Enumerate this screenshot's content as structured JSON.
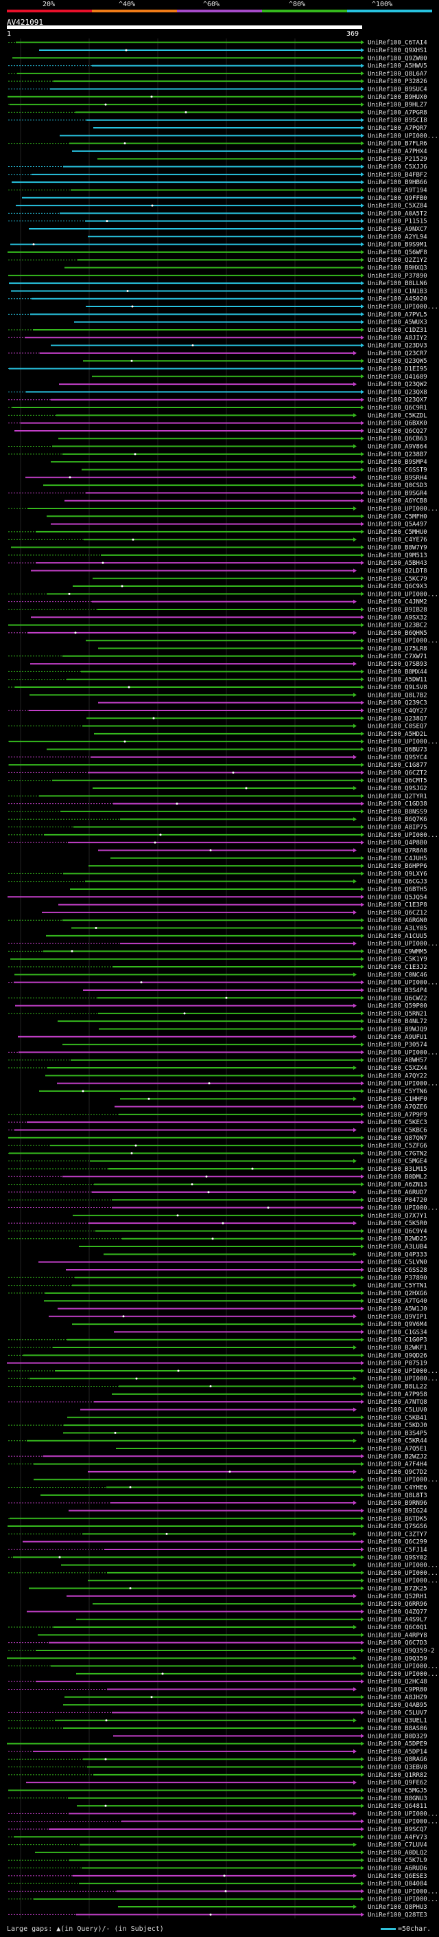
{
  "scale": {
    "labels": [
      "20%",
      "^40%",
      "^60%",
      "^80%",
      "^100%"
    ],
    "colors": [
      "#e8102a",
      "#f07c18",
      "#a64bc9",
      "#35b81d",
      "#28c3e0"
    ]
  },
  "query": {
    "id": "AV421091",
    "start": "1",
    "end": "369"
  },
  "legend": {
    "gaps": "Large gaps: ▲(in Query)/- (in Subject)",
    "scale": "=50char."
  },
  "hits": [
    "UniRef100_C6TAI4",
    "UniRef100_Q9XHS1",
    "UniRef100_Q9ZW00",
    "UniRef100_A5HWV5",
    "UniRef100_Q8L6A7",
    "UniRef100_P32826",
    "UniRef100_B9SUC4",
    "UniRef100_B9HUX0",
    "UniRef100_B9HLZ7",
    "UniRef100_A7PGR8",
    "UniRef100_B9SCI8",
    "UniRef100_A7PQR7",
    "UniRef100_UPI000...",
    "UniRef100_B7FLR6",
    "UniRef100_A7PHX4",
    "UniRef100_P21529",
    "UniRef100_C5XJJ6",
    "UniRef100_B4FBF2",
    "UniRef100_B9HB66",
    "UniRef100_A9T194",
    "UniRef100_Q9FFB0",
    "UniRef100_C5XZ84",
    "UniRef100_A0A5T2",
    "UniRef100_P11515",
    "UniRef100_A9NXC7",
    "UniRef100_A2YL94",
    "UniRef100_B9S9M1",
    "UniRef100_Q56WF8",
    "UniRef100_Q2Z1Y2",
    "UniRef100_B9HXQ3",
    "UniRef100_P37890",
    "UniRef100_B8LLN6",
    "UniRef100_C1N1B3",
    "UniRef100_A4S020",
    "UniRef100_UPI000...",
    "UniRef100_A7PVL5",
    "UniRef100_A5WUX3",
    "UniRef100_C1DZ31",
    "UniRef100_A8JIY2",
    "UniRef100_Q23DV3",
    "UniRef100_Q23CR7",
    "UniRef100_Q23QW5",
    "UniRef100_D1EI95",
    "UniRef100_Q41689",
    "UniRef100_Q23QW2",
    "UniRef100_Q23QX8",
    "UniRef100_Q23QX7",
    "UniRef100_Q6C9R1",
    "UniRef100_C5KZDL",
    "UniRef100_Q6BXK0",
    "UniRef100_Q6CQ27",
    "UniRef100_Q6CB63",
    "UniRef100_A9V864",
    "UniRef100_Q238B7",
    "UniRef100_B9SMP4",
    "UniRef100_C6SST9",
    "UniRef100_B9SRH4",
    "UniRef100_Q0CSD3",
    "UniRef100_B9SGR4",
    "UniRef100_A6YCB8",
    "UniRef100_UPI000...",
    "UniRef100_C5MFH0",
    "UniRef100_Q5A497",
    "UniRef100_C5MHU0",
    "UniRef100_C4YE76",
    "UniRef100_B8W7Y9",
    "UniRef100_Q9M513",
    "UniRef100_A5BH43",
    "UniRef100_Q2LDT8",
    "UniRef100_C5KC79",
    "UniRef100_Q6C9X3",
    "UniRef100_UPI000...",
    "UniRef100_C4JNM2",
    "UniRef100_B9IB28",
    "UniRef100_A9SX32",
    "UniRef100_Q23BC2",
    "UniRef100_B6QHN5",
    "UniRef100_UPI000...",
    "UniRef100_Q75LR8",
    "UniRef100_C7XW71",
    "UniRef100_Q7SB93",
    "UniRef100_B8MX44",
    "UniRef100_A5DW11",
    "UniRef100_Q9LSV8",
    "UniRef100_Q8L7B2",
    "UniRef100_Q239C3",
    "UniRef100_C4QY27",
    "UniRef100_Q238Q7",
    "UniRef100_C0SEQ7",
    "UniRef100_A5HD2L",
    "UniRef100_UPI000...",
    "UniRef100_Q6BU73",
    "UniRef100_Q9SYC4",
    "UniRef100_C1G877",
    "UniRef100_Q6CZT2",
    "UniRef100_Q6CMT5",
    "UniRef100_Q9SJG2",
    "UniRef100_Q2TYR1",
    "UniRef100_C1GD38",
    "UniRef100_B8NSS9",
    "UniRef100_B6Q7K6",
    "UniRef100_A8IP75",
    "UniRef100_UPI000...",
    "UniRef100_Q4P8B0",
    "UniRef100_Q7R8A8",
    "UniRef100_C4JUH5",
    "UniRef100_B6HPP6",
    "UniRef100_Q9LXY6",
    "UniRef100_Q6CGJ3",
    "UniRef100_Q6BTH5",
    "UniRef100_Q5JQ54",
    "UniRef100_C1E3P8",
    "UniRef100_Q6CZ12",
    "UniRef100_A6RGN0",
    "UniRef100_A3LY05",
    "UniRef100_A1CUU5",
    "UniRef100_UPI000...",
    "UniRef100_C9WMM5",
    "UniRef100_C5K1Y9",
    "UniRef100_C1E3J2",
    "UniRef100_C0NC46",
    "UniRef100_UPI000...",
    "UniRef100_B3S4P4",
    "UniRef100_Q6CWZ2",
    "UniRef100_Q59P00",
    "UniRef100_Q5RN21",
    "UniRef100_B4NL72",
    "UniRef100_B9WJQ9",
    "UniRef100_A9UFU1",
    "UniRef100_P30574",
    "UniRef100_UPI000...",
    "UniRef100_A8WH57",
    "UniRef100_C5XZX4",
    "UniRef100_A7QY22",
    "UniRef100_UPI000...",
    "UniRef100_C5YTN6",
    "UniRef100_C1HHF0",
    "UniRef100_A7QZE6",
    "UniRef100_A7P9F9",
    "UniRef100_C5KEC3",
    "UniRef100_C5KBC6",
    "UniRef100_Q87QN7",
    "UniRef100_C5ZFG6",
    "UniRef100_C7GTN2",
    "UniRef100_C5MGE4",
    "UniRef100_B3LM15",
    "UniRef100_B0DML2",
    "UniRef100_A6ZN13",
    "UniRef100_A6RUD7",
    "UniRef100_P04720",
    "UniRef100_UPI000...",
    "UniRef100_Q7X7Y1",
    "UniRef100_C5K5R0",
    "UniRef100_Q6C9Y4",
    "UniRef100_B2WD25",
    "UniRef100_A3LUB4",
    "UniRef100_Q4P333",
    "UniRef100_C5LVN0",
    "UniRef100_C6SS28",
    "UniRef100_P37890",
    "UniRef100_C5YTN1",
    "UniRef100_Q2HXG6",
    "UniRef100_A7TG40",
    "UniRef100_A5W1J0",
    "UniRef100_Q9VIP1",
    "UniRef100_Q9V6M4",
    "UniRef100_C1GS34",
    "UniRef100_C1G0P3",
    "UniRef100_B2WKF1",
    "UniRef100_Q9QD26",
    "UniRef100_P07519",
    "UniRef100_UPI000...",
    "UniRef100_UPI000...",
    "UniRef100_B8LL22",
    "UniRef100_A7P958",
    "UniRef100_A7NTQ8",
    "UniRef100_C5LUV0",
    "UniRef100_C5KB41",
    "UniRef100_C5KDJ0",
    "UniRef100_B3S4P5",
    "UniRef100_C5KR44",
    "UniRef100_A7Q5E1",
    "UniRef100_B2WZJ2",
    "UniRef100_A7F4H4",
    "UniRef100_Q9C7D2",
    "UniRef100_UPI000...",
    "UniRef100_C4YHE6",
    "UniRef100_Q8L8T3",
    "UniRef100_B9RN96",
    "UniRef100_B9IG24",
    "UniRef100_B6TDK5",
    "UniRef100_Q7SGS6",
    "UniRef100_C3ZTY7",
    "UniRef100_Q6C299",
    "UniRef100_C5FJ14",
    "UniRef100_Q9SY02",
    "UniRef100_UPI000...",
    "UniRef100_UPI000...",
    "UniRef100_UPI000...",
    "UniRef100_B7ZK25",
    "UniRef100_Q52RH1",
    "UniRef100_Q6RR96",
    "UniRef100_Q4ZQ77",
    "UniRef100_A4S9L7",
    "UniRef100_Q6C0Q1",
    "UniRef100_A4RPY8",
    "UniRef100_Q6C7D3",
    "UniRef100_Q9Q359-2",
    "UniRef100_Q9Q359",
    "UniRef100_UPI000...",
    "UniRef100_UPI000...",
    "UniRef100_Q2HC48",
    "UniRef100_C9PR80",
    "UniRef100_A8JHZ9",
    "UniRef100_Q4AB95",
    "UniRef100_C5LUV7",
    "UniRef100_Q3UEL1",
    "UniRef100_B8AS06",
    "UniRef100_B0D329",
    "UniRef100_A5DPE9",
    "UniRef100_A5DP14",
    "UniRef100_Q8RAG6",
    "UniRef100_Q3EBV8",
    "UniRef100_Q1RR82",
    "UniRef100_Q9FE62",
    "UniRef100_C5MGJ5",
    "UniRef100_B8GNU3",
    "UniRef100_Q64811",
    "UniRef100_UPI000...",
    "UniRef100_UPI000...",
    "UniRef100_B9SCQ7",
    "UniRef100_A4FV73",
    "UniRef100_C7LUV4",
    "UniRef100_A0DLQ2",
    "UniRef100_C5K7L9",
    "UniRef100_A6RUD6",
    "UniRef100_Q6ESE3",
    "UniRef100_Q04084",
    "UniRef100_UPI000...",
    "UniRef100_UPI000...",
    "UniRef100_Q8PHU3",
    "UniRef100_Q28TE3"
  ]
}
